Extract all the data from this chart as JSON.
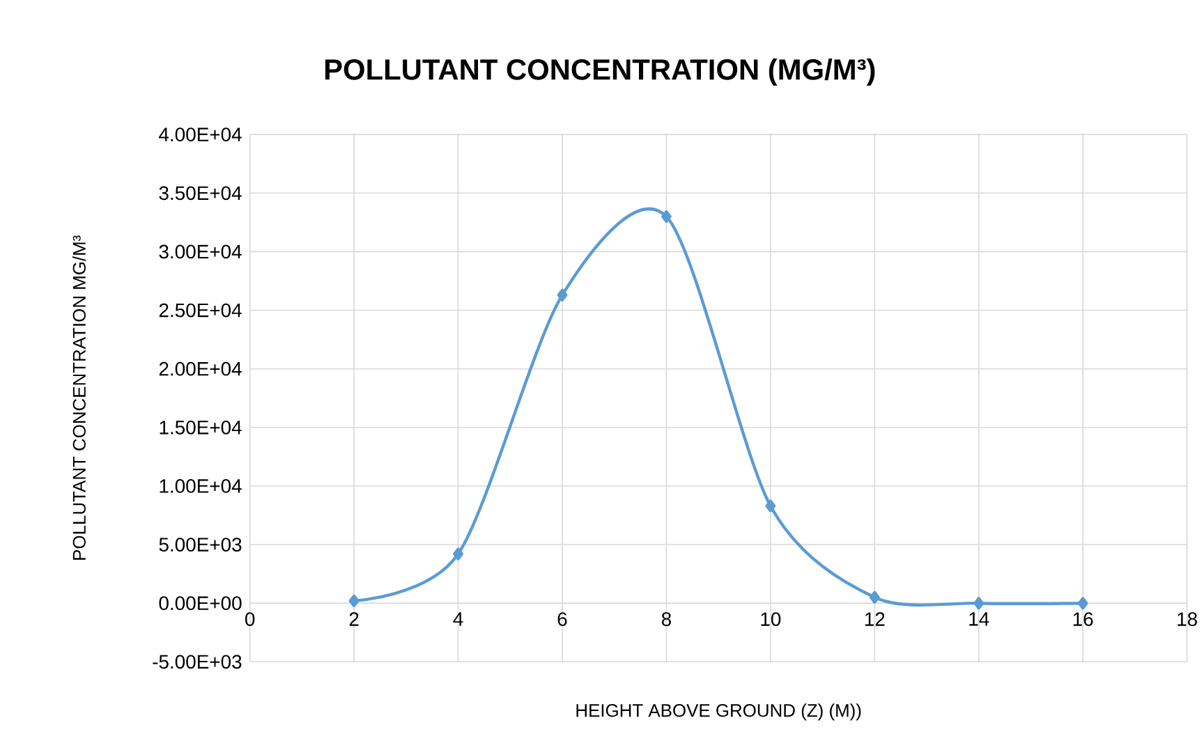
{
  "chart_data": {
    "type": "line",
    "title": "POLLUTANT CONCENTRATION (MG/M³)",
    "xlabel": "HEIGHT ABOVE GROUND (Z) (M))",
    "ylabel": "POLLUTANT CONCENTRATION MG/M³",
    "x": [
      2,
      4,
      6,
      8,
      10,
      12,
      14,
      16
    ],
    "series": [
      {
        "color": "#5b9bd5",
        "values": [
          200,
          4200,
          26300,
          33000,
          8300,
          500,
          0,
          0
        ]
      }
    ],
    "xlim": [
      0,
      18
    ],
    "xticks": [
      0,
      2,
      4,
      6,
      8,
      10,
      12,
      14,
      16,
      18
    ],
    "ylim": [
      -5000,
      40000
    ],
    "yticks": [
      {
        "value": -5000,
        "label": "-5.00E+03"
      },
      {
        "value": 0,
        "label": "0.00E+00"
      },
      {
        "value": 5000,
        "label": "5.00E+03"
      },
      {
        "value": 10000,
        "label": "1.00E+04"
      },
      {
        "value": 15000,
        "label": "1.50E+04"
      },
      {
        "value": 20000,
        "label": "2.00E+04"
      },
      {
        "value": 25000,
        "label": "2.50E+04"
      },
      {
        "value": 30000,
        "label": "3.00E+04"
      },
      {
        "value": 35000,
        "label": "3.50E+04"
      },
      {
        "value": 40000,
        "label": "4.00E+04"
      }
    ],
    "grid": true,
    "marker": "diamond",
    "line_style": "solid"
  }
}
